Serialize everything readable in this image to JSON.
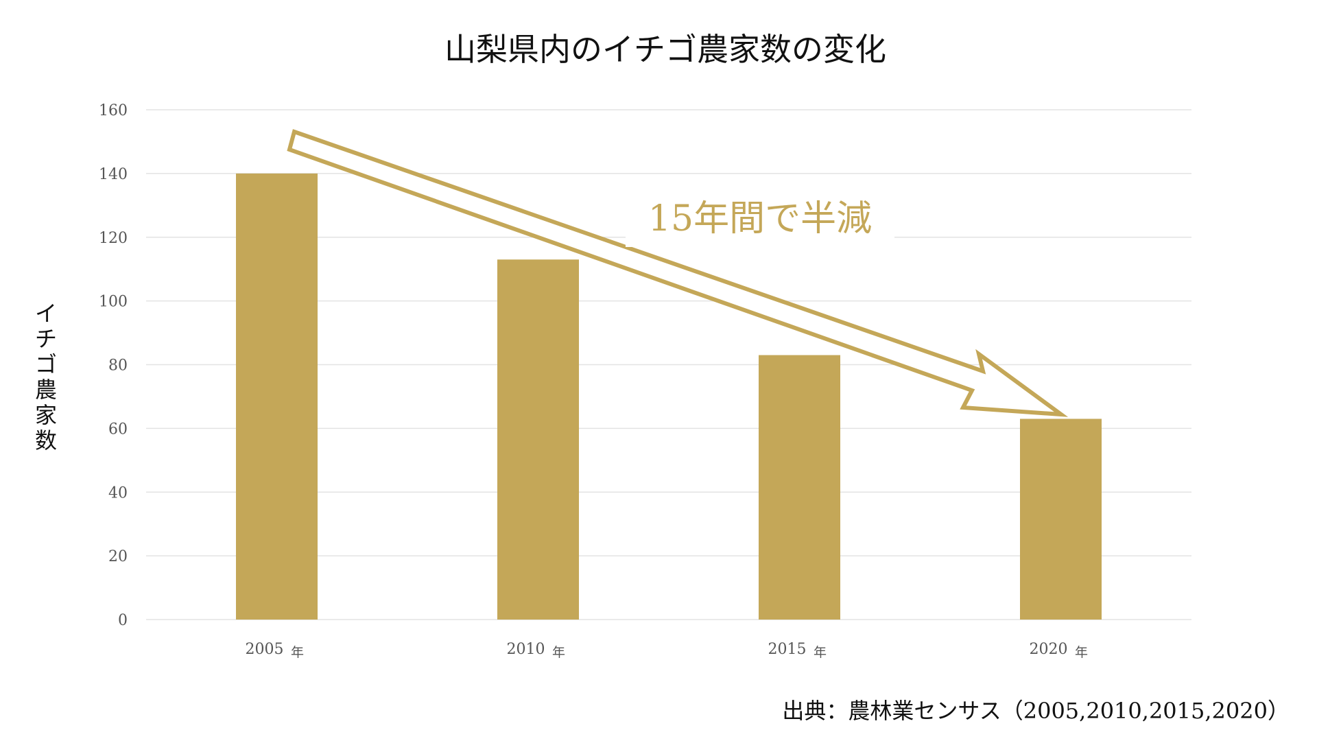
{
  "chart_data": {
    "type": "bar",
    "title": "山梨県内のイチゴ農家数の変化",
    "ylabel": "イチゴ農家数",
    "xlabel": "",
    "categories": [
      "2005",
      "2010",
      "2015",
      "2020"
    ],
    "category_suffix": "年",
    "values": [
      140,
      113,
      83,
      63
    ],
    "ylim": [
      0,
      160
    ],
    "yticks": [
      0,
      20,
      40,
      60,
      80,
      100,
      120,
      140,
      160
    ],
    "grid": true,
    "annotation": "15年間で半減",
    "source": "出典：農林業センサス（2005,2010,2015,2020）",
    "bar_color": "#c4a758",
    "arrow_color": "#c4a758"
  }
}
